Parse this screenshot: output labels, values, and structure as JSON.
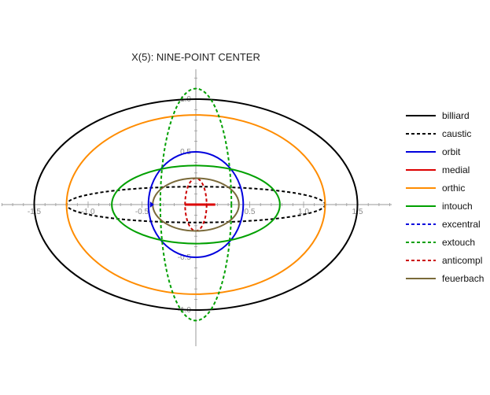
{
  "chart_data": {
    "type": "line",
    "title": "X(5): NINE-POINT CENTER",
    "xlabel": "",
    "ylabel": "",
    "xlim": [
      -1.85,
      1.85
    ],
    "ylim": [
      -1.2,
      1.25
    ],
    "grid": false,
    "legend_position": "right",
    "x_ticks": [
      -1.5,
      -1.0,
      -0.5,
      0.5,
      1.0,
      1.5
    ],
    "x_tick_labels": [
      "-1.5",
      "-1.0",
      "-0.5",
      "0.5",
      "1.0",
      "1.5"
    ],
    "y_ticks": [
      -1.0,
      -0.5,
      0.5,
      1.0
    ],
    "y_tick_labels": [
      "-1.0",
      "-0.5",
      "0.5",
      "1.0"
    ],
    "series": [
      {
        "name": "billiard",
        "shape": "ellipse",
        "cx": 0.0,
        "cy": 0.0,
        "rx": 1.5,
        "ry": 1.0,
        "color": "#000000",
        "dashed": false
      },
      {
        "name": "caustic",
        "shape": "ellipse",
        "cx": 0.0,
        "cy": 0.0,
        "rx": 1.2,
        "ry": 0.17,
        "color": "#000000",
        "dashed": true
      },
      {
        "name": "orbit",
        "shape": "ellipse",
        "cx": 0.0,
        "cy": 0.0,
        "rx": 0.44,
        "ry": 0.5,
        "color": "#0000dd",
        "dashed": false
      },
      {
        "name": "medial",
        "shape": "segment",
        "cx": 0.0,
        "cy": 0.0,
        "x0": -0.1,
        "x1": 0.18,
        "color": "#dd0000",
        "dashed": false
      },
      {
        "name": "orthic",
        "shape": "ellipse",
        "cx": 0.0,
        "cy": 0.0,
        "rx": 1.2,
        "ry": 0.85,
        "color": "#ff8c00",
        "dashed": false
      },
      {
        "name": "intouch",
        "shape": "ellipse",
        "cx": 0.0,
        "cy": 0.0,
        "rx": 0.78,
        "ry": 0.37,
        "color": "#00a000",
        "dashed": false
      },
      {
        "name": "excentral",
        "shape": "none",
        "color": "#0000dd",
        "dashed": true
      },
      {
        "name": "extouch",
        "shape": "ellipse",
        "cx": 0.0,
        "cy": 0.0,
        "rx": 0.33,
        "ry": 1.1,
        "color": "#00a000",
        "dashed": true
      },
      {
        "name": "anticompl",
        "shape": "ellipse",
        "cx": 0.0,
        "cy": 0.0,
        "rx": 0.1,
        "ry": 0.25,
        "color": "#cc0000",
        "dashed": true
      },
      {
        "name": "feuerbach",
        "shape": "ellipse",
        "cx": 0.0,
        "cy": 0.0,
        "rx": 0.4,
        "ry": 0.25,
        "color": "#7a6a3a",
        "dashed": false
      }
    ]
  }
}
